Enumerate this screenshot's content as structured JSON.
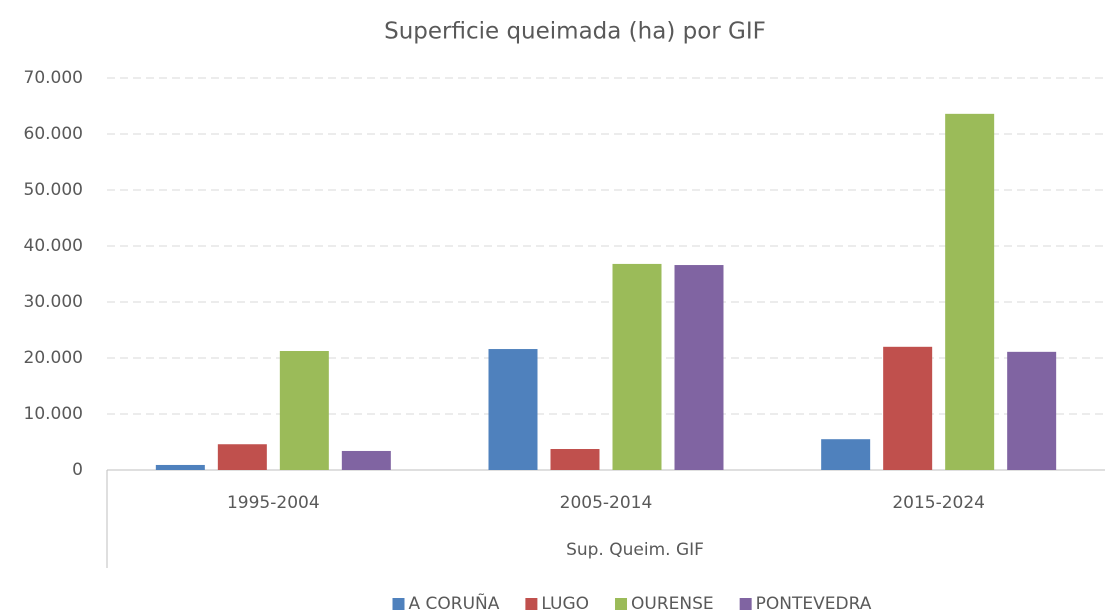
{
  "chart_data": {
    "type": "bar",
    "title": "Superficie queimada (ha) por GIF",
    "x_label": "Sup. Queim. GIF",
    "categories": [
      "1995-2004",
      "2005-2014",
      "2015-2024"
    ],
    "series": [
      {
        "name": "A CORUÑA",
        "color": "#4f81bd",
        "values": [
          900,
          21600,
          5500
        ]
      },
      {
        "name": "LUGO",
        "color": "#c0504d",
        "values": [
          4600,
          3750,
          22000
        ]
      },
      {
        "name": "OURENSE",
        "color": "#9bbb59",
        "values": [
          21250,
          36800,
          63600
        ]
      },
      {
        "name": "PONTEVEDRA",
        "color": "#8064a2",
        "values": [
          3400,
          36600,
          21100
        ]
      }
    ],
    "ylim": [
      0,
      70000
    ],
    "yticks": [
      0,
      {
        "value": 10000,
        "label": "10.000"
      },
      {
        "value": 20000,
        "label": "20.000"
      },
      {
        "value": 30000,
        "label": "30.000"
      },
      {
        "value": 40000,
        "label": "40.000"
      },
      {
        "value": 50000,
        "label": "50.000"
      },
      {
        "value": 60000,
        "label": "60.000"
      },
      {
        "value": 70000,
        "label": "70.000"
      }
    ],
    "grid": true,
    "legend": "bottom"
  }
}
